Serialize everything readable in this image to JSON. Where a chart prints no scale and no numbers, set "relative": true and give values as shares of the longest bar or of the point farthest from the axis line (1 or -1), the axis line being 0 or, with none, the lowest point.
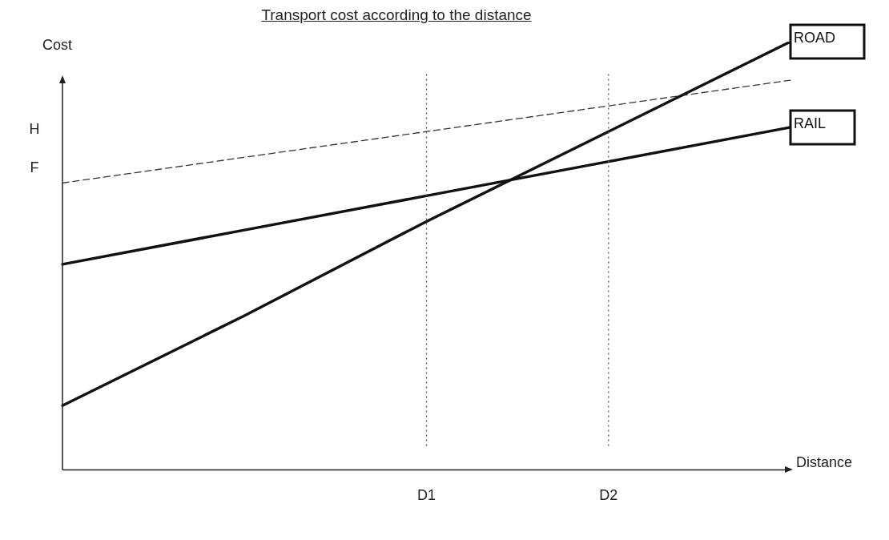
{
  "chart_data": {
    "type": "line",
    "title": "Transport cost according to the distance",
    "xlabel": "Distance",
    "ylabel": "Cost",
    "relative": true,
    "categories": [
      null,
      null,
      "D1",
      "D2",
      null
    ],
    "grid": false,
    "legend": false,
    "marker": "none",
    "series": [
      {
        "name": "ROAD",
        "color": "#111111",
        "values": [
          0.15,
          0.36,
          0.58,
          0.79,
          1
        ],
        "line_style": "solid"
      },
      {
        "name": "RAIL",
        "color": "#111111",
        "values": [
          0.48,
          0.56,
          0.64,
          0.72,
          0.8
        ],
        "line_style": "solid"
      },
      {
        "color": "#333333",
        "values": [
          0.67,
          0.73,
          0.79,
          0.85,
          0.91
        ],
        "line_style": "dashed"
      }
    ],
    "ref_lines": [
      {
        "axis": "x",
        "value": "D1",
        "color": "#555555",
        "line_style": "dotted"
      },
      {
        "axis": "x",
        "value": "D2",
        "color": "#555555",
        "line_style": "dotted"
      }
    ],
    "annotations": [
      "H",
      "F"
    ]
  }
}
